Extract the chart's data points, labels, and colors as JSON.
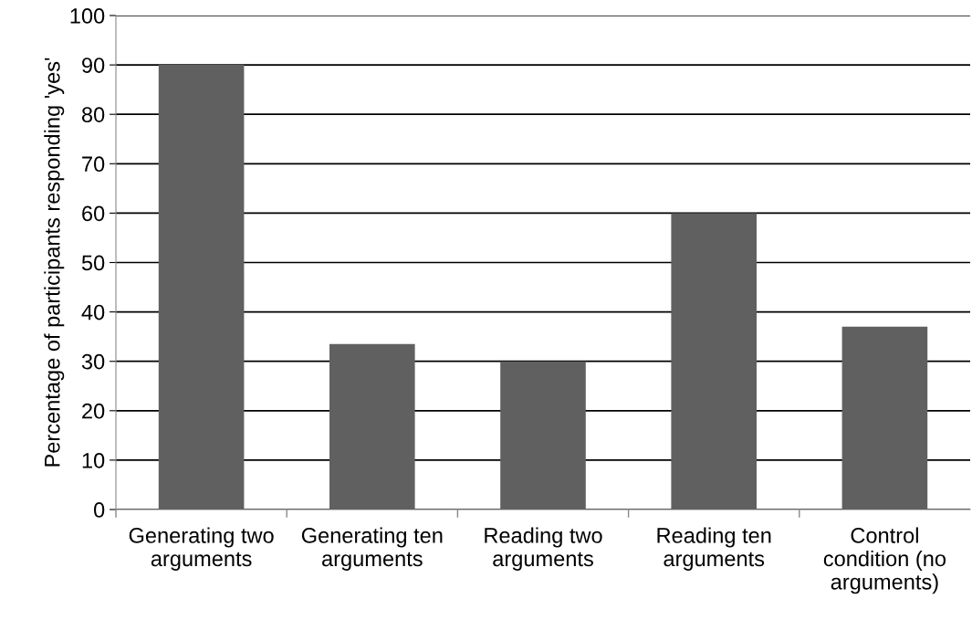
{
  "chart_data": {
    "type": "bar",
    "ylabel": "Percentage of participants responding 'yes'",
    "categories": [
      "Generating two\narguments",
      "Generating ten\narguments",
      "Reading two\narguments",
      "Reading ten\narguments",
      "Control\ncondition (no\narguments)"
    ],
    "values": [
      90,
      33.5,
      30,
      60,
      37
    ],
    "color": "#606060",
    "ylim": [
      0,
      100
    ],
    "yticks": [
      0,
      10,
      20,
      30,
      40,
      50,
      60,
      70,
      80,
      90,
      100
    ],
    "grid": "y"
  }
}
